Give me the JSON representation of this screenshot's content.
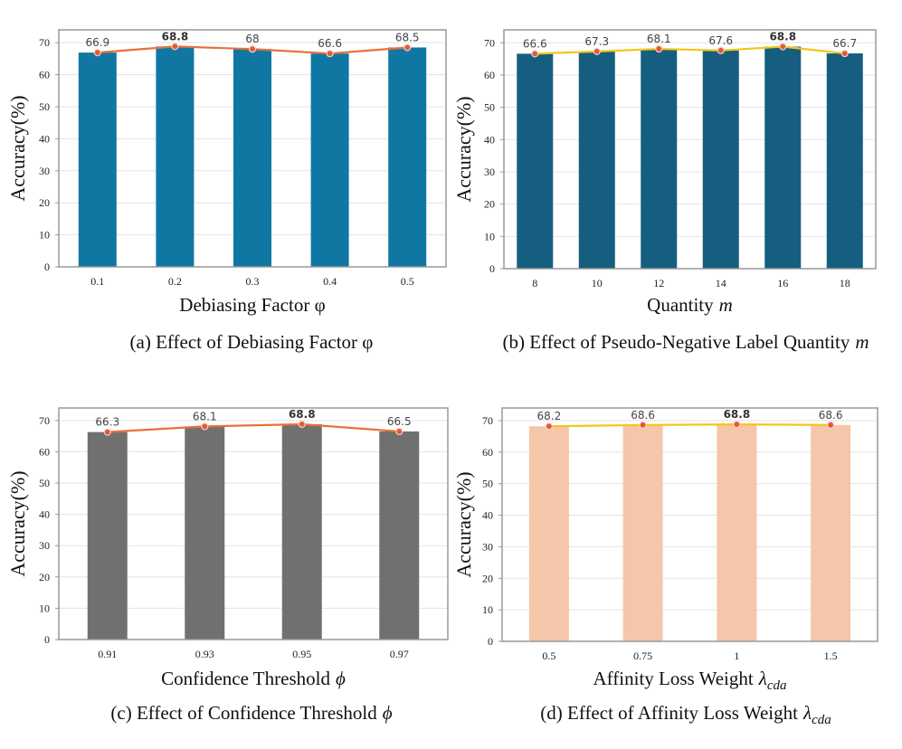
{
  "chart_data": [
    {
      "type": "bar",
      "categories": [
        "0.1",
        "0.2",
        "0.3",
        "0.4",
        "0.5"
      ],
      "values": [
        66.9,
        68.8,
        68,
        66.6,
        68.5
      ],
      "value_labels": [
        "66.9",
        "68.8",
        "68",
        "66.6",
        "68.5"
      ],
      "highlight_index": 1,
      "ylabel": "Accuracy(%)",
      "xlabel": "Debiasing Factor φ",
      "caption": "(a) Effect of Debiasing Factor φ",
      "ylim": [
        0,
        74
      ],
      "yticks": [
        0,
        10,
        20,
        30,
        40,
        50,
        60,
        70
      ],
      "bar_color": "#0f77a2",
      "line_color": "#e8703a"
    },
    {
      "type": "bar",
      "categories": [
        "8",
        "10",
        "12",
        "14",
        "16",
        "18"
      ],
      "values": [
        66.6,
        67.3,
        68.1,
        67.6,
        68.8,
        66.7
      ],
      "value_labels": [
        "66.6",
        "67.3",
        "68.1",
        "67.6",
        "68.8",
        "66.7"
      ],
      "highlight_index": 4,
      "ylabel": "Accuracy(%)",
      "xlabel": "Quantity",
      "xlabel_var": "m",
      "caption": "(b) Effect of Pseudo-Negative Label Quantity",
      "caption_var": "m",
      "ylim": [
        0,
        74
      ],
      "yticks": [
        0,
        10,
        20,
        30,
        40,
        50,
        60,
        70
      ],
      "bar_color": "#165e80",
      "line_color": "#f5c518"
    },
    {
      "type": "bar",
      "categories": [
        "0.91",
        "0.93",
        "0.95",
        "0.97"
      ],
      "values": [
        66.3,
        68.1,
        68.8,
        66.5
      ],
      "value_labels": [
        "66.3",
        "68.1",
        "68.8",
        "66.5"
      ],
      "highlight_index": 2,
      "ylabel": "Accuracy(%)",
      "xlabel": "Confidence Threshold",
      "xlabel_var": "ϕ",
      "caption": "(c) Effect of Confidence Threshold",
      "caption_var": "ϕ",
      "ylim": [
        0,
        74
      ],
      "yticks": [
        0,
        10,
        20,
        30,
        40,
        50,
        60,
        70
      ],
      "bar_color": "#707070",
      "line_color": "#e8703a"
    },
    {
      "type": "bar",
      "categories": [
        "0.5",
        "0.75",
        "1",
        "1.5"
      ],
      "values": [
        68.2,
        68.6,
        68.8,
        68.6
      ],
      "value_labels": [
        "68.2",
        "68.6",
        "68.8",
        "68.6"
      ],
      "highlight_index": 2,
      "ylabel": "Accuracy(%)",
      "xlabel": "Affinity Loss Weight",
      "xlabel_var": "λ",
      "xlabel_sub": "cda",
      "caption": "(d) Effect of Affinity Loss Weight",
      "caption_var": "λ",
      "caption_sub": "cda",
      "ylim": [
        0,
        74
      ],
      "yticks": [
        0,
        10,
        20,
        30,
        40,
        50,
        60,
        70
      ],
      "bar_color": "#f5c6aa",
      "line_color": "#f5c518"
    }
  ]
}
